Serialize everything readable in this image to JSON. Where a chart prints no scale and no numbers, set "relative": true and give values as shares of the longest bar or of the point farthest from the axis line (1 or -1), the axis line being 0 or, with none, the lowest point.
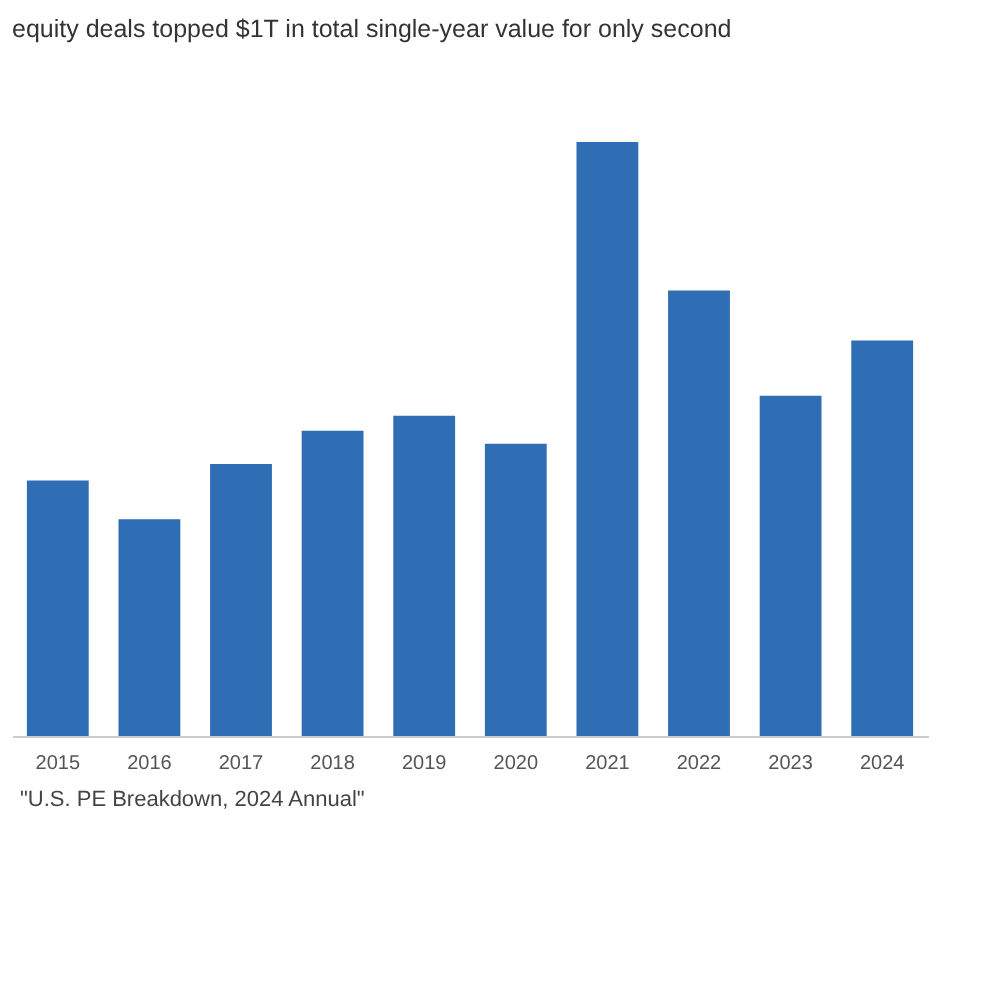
{
  "chart_data": {
    "type": "bar",
    "title": "equity deals topped $1T in total single-year value for only second",
    "categories": [
      "2015",
      "2016",
      "2017",
      "2018",
      "2019",
      "2020",
      "2021",
      "2022",
      "2023",
      "2024"
    ],
    "values": [
      0.43,
      0.365,
      0.458,
      0.514,
      0.539,
      0.492,
      1,
      0.75,
      0.573,
      0.666
    ],
    "color": "#2f6db5",
    "relative": true,
    "annotations": [
      "\"U.S. PE Breakdown, 2024 Annual\""
    ]
  }
}
